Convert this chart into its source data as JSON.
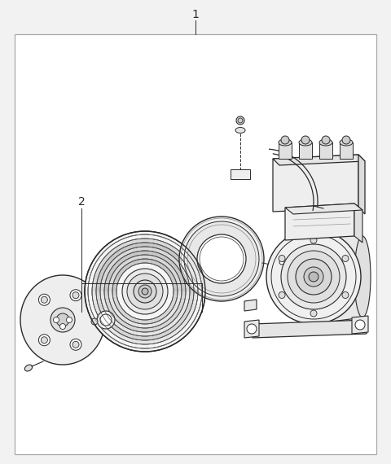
{
  "background_color": "#f2f2f2",
  "box_color": "#aaaaaa",
  "line_color": "#2a2a2a",
  "fig_width": 4.8,
  "fig_height": 5.7,
  "dpi": 100,
  "label1": "1",
  "label2": "2"
}
